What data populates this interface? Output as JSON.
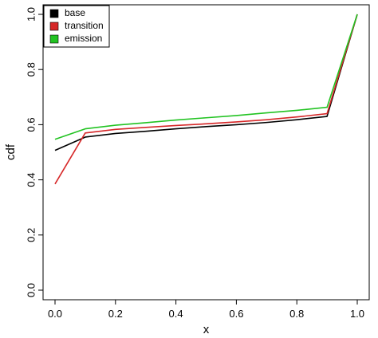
{
  "chart_data": {
    "type": "line",
    "xlabel": "x",
    "ylabel": "cdf",
    "xlim": [
      0,
      1
    ],
    "ylim": [
      0,
      1
    ],
    "x_ticks": [
      "0.0",
      "0.2",
      "0.4",
      "0.6",
      "0.8",
      "1.0"
    ],
    "y_ticks": [
      "0.0",
      "0.2",
      "0.4",
      "0.6",
      "0.8",
      "1.0"
    ],
    "legend_position": "top-left",
    "grid": false,
    "series": [
      {
        "name": "base",
        "color": "#000000",
        "x": [
          0.0,
          0.1,
          0.2,
          0.3,
          0.4,
          0.5,
          0.6,
          0.7,
          0.8,
          0.9,
          1.0
        ],
        "y": [
          0.507,
          0.555,
          0.568,
          0.576,
          0.585,
          0.593,
          0.6,
          0.608,
          0.618,
          0.63,
          1.0
        ]
      },
      {
        "name": "transition",
        "color": "#d62728",
        "x": [
          0.0,
          0.1,
          0.2,
          0.3,
          0.4,
          0.5,
          0.6,
          0.7,
          0.8,
          0.9,
          1.0
        ],
        "y": [
          0.385,
          0.57,
          0.583,
          0.59,
          0.597,
          0.603,
          0.61,
          0.618,
          0.628,
          0.64,
          1.0
        ]
      },
      {
        "name": "emission",
        "color": "#22c322",
        "x": [
          0.0,
          0.1,
          0.2,
          0.3,
          0.4,
          0.5,
          0.6,
          0.7,
          0.8,
          0.9,
          1.0
        ],
        "y": [
          0.547,
          0.585,
          0.598,
          0.607,
          0.617,
          0.625,
          0.633,
          0.643,
          0.652,
          0.663,
          1.0
        ]
      }
    ]
  }
}
